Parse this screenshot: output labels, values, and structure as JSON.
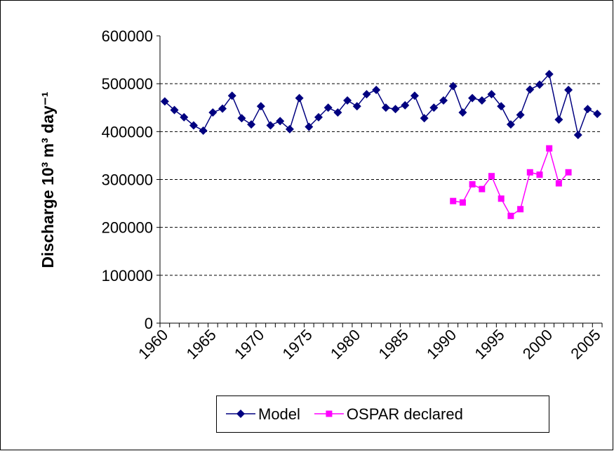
{
  "chart_data": {
    "type": "line",
    "y_label": "Discharge 10³ m³ day⁻¹",
    "categories": [
      "1960",
      null,
      null,
      null,
      null,
      "1965",
      null,
      null,
      null,
      null,
      "1970",
      null,
      null,
      null,
      null,
      "1975",
      null,
      null,
      null,
      null,
      "1980",
      null,
      null,
      null,
      null,
      "1985",
      null,
      null,
      null,
      null,
      "1990",
      null,
      null,
      null,
      null,
      "1995",
      null,
      null,
      null,
      null,
      "2000",
      null,
      null,
      null,
      null,
      "2005"
    ],
    "series": [
      {
        "name": "Model",
        "color": "#000080",
        "marker": "diamond",
        "values": [
          463000,
          445000,
          430000,
          413000,
          402000,
          440000,
          448000,
          475000,
          428000,
          415000,
          453000,
          413000,
          422000,
          405000,
          470000,
          410000,
          430000,
          450000,
          440000,
          465000,
          453000,
          478000,
          487000,
          450000,
          447000,
          455000,
          475000,
          428000,
          450000,
          465000,
          495000,
          440000,
          470000,
          465000,
          478000,
          453000,
          415000,
          435000,
          488000,
          498000,
          520000,
          425000,
          487000,
          393000,
          447000,
          437000
        ]
      },
      {
        "name": "OSPAR declared",
        "color": "#ff00ff",
        "marker": "square",
        "values": [
          null,
          null,
          null,
          null,
          null,
          null,
          null,
          null,
          null,
          null,
          null,
          null,
          null,
          null,
          null,
          null,
          null,
          null,
          null,
          null,
          null,
          null,
          null,
          null,
          null,
          null,
          null,
          null,
          null,
          null,
          255000,
          252000,
          290000,
          280000,
          307000,
          260000,
          224000,
          238000,
          315000,
          310000,
          365000,
          292000,
          315000,
          null,
          null,
          null
        ]
      }
    ],
    "ylim": [
      0,
      600000
    ],
    "yticks": [
      0,
      100000,
      200000,
      300000,
      400000,
      500000,
      600000
    ],
    "grid": true,
    "legend": "bottom"
  }
}
